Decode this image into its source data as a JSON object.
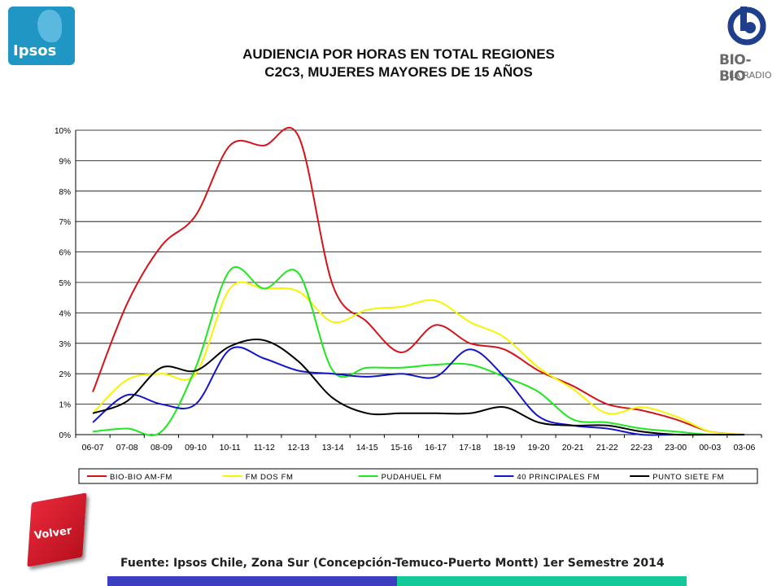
{
  "header": {
    "title_line1": "AUDIENCIA POR HORAS EN TOTAL REGIONES",
    "title_line2": "C2C3, MUJERES MAYORES DE 15 AÑOS",
    "ipsos_logo_text": "Ipsos",
    "biobio_logo_text": "BIO-BIO",
    "biobio_logo_subtext": "LA RADIO"
  },
  "footer": {
    "volver_label": "Volver",
    "source": "Fuente: Ipsos Chile, Zona Sur (Concepción-Temuco-Puerto Montt) 1er Semestre 2014",
    "bar_colors": [
      "#3b3fbf",
      "#13c99a"
    ]
  },
  "chart_data": {
    "type": "line",
    "title": "AUDIENCIA POR HORAS EN TOTAL REGIONES C2C3, MUJERES MAYORES DE 15 AÑOS",
    "xlabel": "",
    "ylabel": "",
    "ylim": [
      0,
      10
    ],
    "y_ticks": [
      "0%",
      "1%",
      "2%",
      "3%",
      "4%",
      "5%",
      "6%",
      "7%",
      "8%",
      "9%",
      "10%"
    ],
    "categories": [
      "06-07",
      "07-08",
      "08-09",
      "09-10",
      "10-11",
      "11-12",
      "12-13",
      "13-14",
      "14-15",
      "15-16",
      "16-17",
      "17-18",
      "18-19",
      "19-20",
      "20-21",
      "21-22",
      "22-23",
      "23-00",
      "00-03",
      "03-06"
    ],
    "grid": true,
    "legend_position": "bottom",
    "series": [
      {
        "name": "BIO-BIO AM-FM",
        "color": "#d4141a",
        "values": [
          1.4,
          4.3,
          6.2,
          7.2,
          9.5,
          9.5,
          9.8,
          4.9,
          3.7,
          2.7,
          3.6,
          3.0,
          2.8,
          2.1,
          1.6,
          1.0,
          0.8,
          0.5,
          0.1,
          0.0
        ]
      },
      {
        "name": "FM DOS FM",
        "color": "#f5f500",
        "values": [
          0.7,
          1.8,
          2.0,
          2.0,
          4.8,
          4.8,
          4.7,
          3.7,
          4.1,
          4.2,
          4.4,
          3.7,
          3.2,
          2.2,
          1.5,
          0.7,
          0.9,
          0.6,
          0.1,
          0.0
        ]
      },
      {
        "name": "PUDAHUEL FM",
        "color": "#1ee81e",
        "values": [
          0.1,
          0.2,
          0.1,
          2.2,
          5.4,
          4.8,
          5.3,
          2.1,
          2.2,
          2.2,
          2.3,
          2.3,
          1.9,
          1.4,
          0.5,
          0.4,
          0.2,
          0.1,
          0.0,
          0.0
        ]
      },
      {
        "name": "40 PRINCIPALES FM",
        "color": "#1515c8",
        "values": [
          0.4,
          1.3,
          1.0,
          1.0,
          2.8,
          2.5,
          2.1,
          2.0,
          1.9,
          2.0,
          1.9,
          2.8,
          1.9,
          0.6,
          0.3,
          0.2,
          0.0,
          0.0,
          0.0,
          0.0
        ]
      },
      {
        "name": "PUNTO SIETE FM",
        "color": "#000000",
        "values": [
          0.7,
          1.1,
          2.2,
          2.1,
          2.9,
          3.1,
          2.4,
          1.2,
          0.7,
          0.7,
          0.7,
          0.7,
          0.9,
          0.4,
          0.3,
          0.3,
          0.1,
          0.0,
          0.0,
          0.0
        ]
      }
    ]
  }
}
